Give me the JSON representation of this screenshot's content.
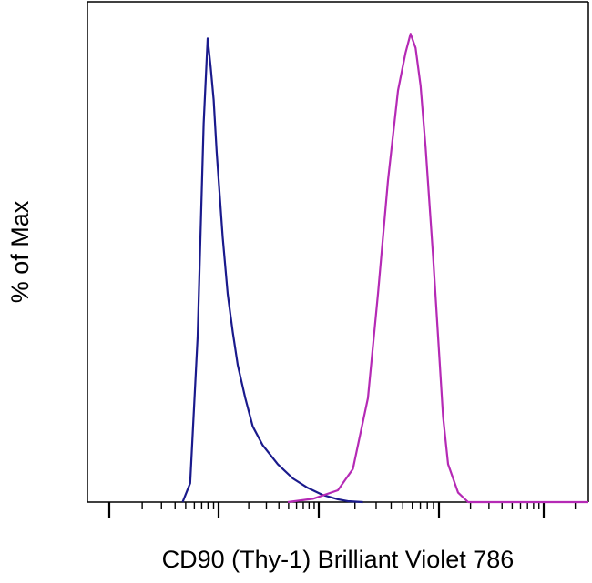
{
  "chart_data": {
    "type": "area",
    "title": "",
    "xlabel": "CD90 (Thy-1) Brilliant Violet 786",
    "ylabel": "% of Max",
    "xscale": "log",
    "xlim": [
      0,
      1
    ],
    "ylim": [
      0,
      100
    ],
    "grid": false,
    "legend": "none",
    "series": [
      {
        "color": "#1a1a8c",
        "x": [
          0.19,
          0.205,
          0.22,
          0.232,
          0.24,
          0.246,
          0.252,
          0.258,
          0.264,
          0.27,
          0.28,
          0.29,
          0.3,
          0.315,
          0.33,
          0.35,
          0.38,
          0.41,
          0.44,
          0.47,
          0.5,
          0.52,
          0.55
        ],
        "values": [
          0,
          4,
          35,
          80,
          98,
          92,
          85,
          74,
          65,
          56,
          44,
          36,
          29,
          22,
          16,
          12,
          8,
          5,
          3,
          1.5,
          0.6,
          0.2,
          0
        ]
      },
      {
        "color": "#b52ab5",
        "x": [
          0.4,
          0.45,
          0.5,
          0.53,
          0.56,
          0.58,
          0.6,
          0.62,
          0.635,
          0.645,
          0.655,
          0.665,
          0.675,
          0.69,
          0.7,
          0.71,
          0.72,
          0.74,
          0.76,
          1.0
        ],
        "values": [
          0,
          0.7,
          2.5,
          7,
          22,
          44,
          68,
          87,
          95,
          99,
          96,
          88,
          75,
          52,
          35,
          18,
          8,
          2,
          0,
          0
        ]
      }
    ]
  }
}
